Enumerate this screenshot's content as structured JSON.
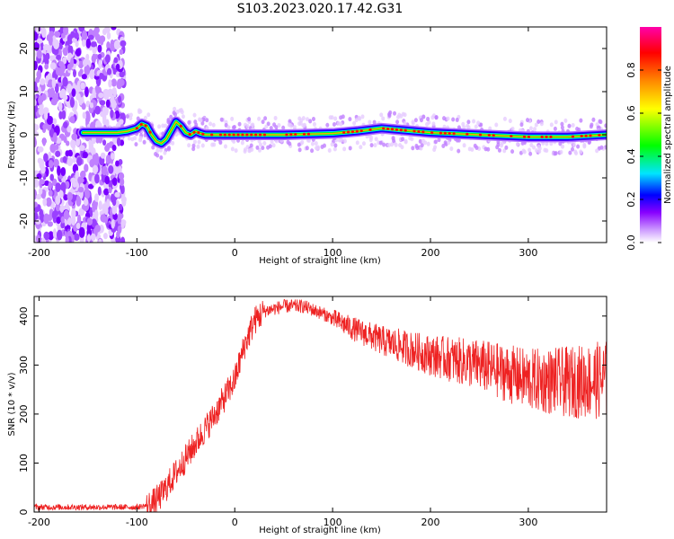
{
  "title": "S103.2023.020.17.42.G31",
  "chart_data": [
    {
      "type": "heatmap",
      "title": "S103.2023.020.17.42.G31",
      "xlabel": "Height of straight line (km)",
      "ylabel": "Frequency (Hz)",
      "xlim": [
        -205,
        380
      ],
      "ylim": [
        -25,
        25
      ],
      "xticks": [
        -200,
        -100,
        0,
        100,
        200,
        300
      ],
      "yticks": [
        -20,
        -10,
        0,
        10,
        20
      ],
      "colorbar": {
        "label": "Normalized spectral amplitude",
        "range": [
          0.0,
          1.0
        ],
        "ticks": [
          0.0,
          0.2,
          0.4,
          0.6,
          0.8
        ],
        "colors": [
          "#ffffff",
          "#cc99ff",
          "#8800ff",
          "#0000ff",
          "#00e5ff",
          "#00ff00",
          "#ffff00",
          "#ff8800",
          "#ff0000",
          "#ff00aa"
        ]
      },
      "ridge": {
        "x": [
          -155,
          -120,
          -110,
          -100,
          -95,
          -90,
          -85,
          -80,
          -75,
          -70,
          -65,
          -60,
          -55,
          -50,
          -45,
          -40,
          -35,
          -30,
          -20,
          0,
          50,
          100,
          125,
          150,
          175,
          200,
          250,
          300,
          340,
          380
        ],
        "freq": [
          0.5,
          0.5,
          0.8,
          1.5,
          2.5,
          2.0,
          0.0,
          -1.5,
          -2.0,
          -1.0,
          1.0,
          3.0,
          2.0,
          0.5,
          0.0,
          0.8,
          0.3,
          0.0,
          0.0,
          0.0,
          0.0,
          0.3,
          0.8,
          1.5,
          1.0,
          0.5,
          0.0,
          -0.5,
          -0.5,
          0.0
        ]
      },
      "noise_region_x": [
        -205,
        -113
      ]
    },
    {
      "type": "line",
      "xlabel": "Height of straight line (km)",
      "ylabel": "SNR (10 * v/v)",
      "xlim": [
        -205,
        380
      ],
      "ylim": [
        0,
        440
      ],
      "xticks": [
        -200,
        -100,
        0,
        100,
        200,
        300
      ],
      "yticks": [
        0,
        100,
        200,
        300,
        400
      ],
      "series": [
        {
          "color": "#ee2222",
          "x": [
            -205,
            -150,
            -100,
            -85,
            -75,
            -60,
            -40,
            -20,
            0,
            10,
            20,
            30,
            50,
            70,
            90,
            100,
            120,
            150,
            200,
            250,
            300,
            340,
            380
          ],
          "y": [
            10,
            10,
            10,
            15,
            35,
            80,
            140,
            200,
            270,
            340,
            390,
            410,
            420,
            420,
            405,
            395,
            375,
            350,
            320,
            300,
            270,
            265,
            270
          ]
        }
      ]
    }
  ]
}
